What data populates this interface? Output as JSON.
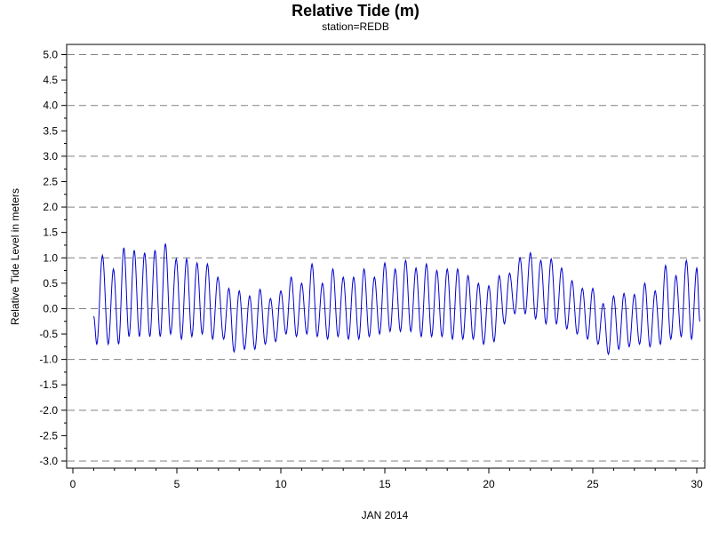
{
  "chart_data": {
    "type": "line",
    "title": "Relative Tide (m)",
    "subtitle": "station=REDB",
    "xlabel": "JAN 2014",
    "ylabel": "Relative Tide Level in meters",
    "xlim": [
      0,
      30
    ],
    "ylim": [
      -3.0,
      5.0
    ],
    "x_ticks": [
      0,
      5,
      10,
      15,
      20,
      25,
      30
    ],
    "x_tick_labels": [
      "0",
      "5",
      "10",
      "15",
      "20",
      "25",
      "30"
    ],
    "y_ticks": [
      5.0,
      4.5,
      4.0,
      3.5,
      3.0,
      2.5,
      2.0,
      1.5,
      1.0,
      0.5,
      0.0,
      -0.5,
      -1.0,
      -1.5,
      -2.0,
      -2.5,
      -3.0
    ],
    "y_tick_labels": [
      "5.0",
      "4.5",
      "4.0",
      "3.5",
      "3.0",
      "2.5",
      "2.0",
      "1.5",
      "1.0",
      "0.5",
      "0.0",
      "-0.5",
      "-1.0",
      "-1.5",
      "-2.0",
      "-2.5",
      "-3.0"
    ],
    "gridlines_y": [
      5.0,
      4.0,
      3.0,
      2.0,
      1.0,
      0.0,
      -1.0,
      -2.0,
      -3.0
    ],
    "grid_style": "dashed, horizontal only",
    "colors": {
      "series": "#0000cc",
      "grid": "#808080",
      "axis": "#000000"
    },
    "series": [
      {
        "points": [
          [
            1.0,
            -0.15
          ],
          [
            1.15,
            -0.7
          ],
          [
            1.42,
            1.05
          ],
          [
            1.7,
            -0.7
          ],
          [
            1.95,
            0.78
          ],
          [
            2.2,
            -0.7
          ],
          [
            2.45,
            1.2
          ],
          [
            2.7,
            -0.55
          ],
          [
            2.95,
            1.15
          ],
          [
            3.2,
            -0.55
          ],
          [
            3.45,
            1.1
          ],
          [
            3.7,
            -0.55
          ],
          [
            3.95,
            1.15
          ],
          [
            4.2,
            -0.55
          ],
          [
            4.45,
            1.28
          ],
          [
            4.7,
            -0.5
          ],
          [
            4.97,
            0.98
          ],
          [
            5.22,
            -0.6
          ],
          [
            5.47,
            0.98
          ],
          [
            5.72,
            -0.55
          ],
          [
            5.97,
            0.9
          ],
          [
            6.22,
            -0.5
          ],
          [
            6.47,
            0.88
          ],
          [
            6.72,
            -0.6
          ],
          [
            6.97,
            0.62
          ],
          [
            7.25,
            -0.6
          ],
          [
            7.5,
            0.4
          ],
          [
            7.75,
            -0.85
          ],
          [
            8.0,
            0.35
          ],
          [
            8.25,
            -0.8
          ],
          [
            8.5,
            0.25
          ],
          [
            8.75,
            -0.8
          ],
          [
            9.0,
            0.38
          ],
          [
            9.25,
            -0.7
          ],
          [
            9.5,
            0.2
          ],
          [
            9.75,
            -0.65
          ],
          [
            10.0,
            0.35
          ],
          [
            10.25,
            -0.5
          ],
          [
            10.5,
            0.62
          ],
          [
            10.75,
            -0.55
          ],
          [
            11.0,
            0.5
          ],
          [
            11.25,
            -0.5
          ],
          [
            11.5,
            0.88
          ],
          [
            11.75,
            -0.55
          ],
          [
            12.0,
            0.5
          ],
          [
            12.25,
            -0.6
          ],
          [
            12.5,
            0.78
          ],
          [
            12.75,
            -0.55
          ],
          [
            13.0,
            0.62
          ],
          [
            13.25,
            -0.6
          ],
          [
            13.5,
            0.62
          ],
          [
            13.75,
            -0.6
          ],
          [
            14.0,
            0.78
          ],
          [
            14.25,
            -0.55
          ],
          [
            14.5,
            0.62
          ],
          [
            14.75,
            -0.5
          ],
          [
            15.0,
            0.9
          ],
          [
            15.25,
            -0.45
          ],
          [
            15.5,
            0.78
          ],
          [
            15.75,
            -0.45
          ],
          [
            16.0,
            0.95
          ],
          [
            16.25,
            -0.45
          ],
          [
            16.5,
            0.8
          ],
          [
            16.75,
            -0.55
          ],
          [
            17.0,
            0.88
          ],
          [
            17.25,
            -0.55
          ],
          [
            17.5,
            0.75
          ],
          [
            17.75,
            -0.55
          ],
          [
            18.0,
            0.78
          ],
          [
            18.25,
            -0.6
          ],
          [
            18.5,
            0.78
          ],
          [
            18.75,
            -0.6
          ],
          [
            19.0,
            0.65
          ],
          [
            19.25,
            -0.6
          ],
          [
            19.5,
            0.5
          ],
          [
            19.75,
            -0.7
          ],
          [
            20.0,
            0.45
          ],
          [
            20.25,
            -0.65
          ],
          [
            20.5,
            0.65
          ],
          [
            20.75,
            -0.3
          ],
          [
            21.0,
            0.7
          ],
          [
            21.25,
            -0.1
          ],
          [
            21.5,
            1.0
          ],
          [
            21.75,
            -0.1
          ],
          [
            22.0,
            1.1
          ],
          [
            22.25,
            -0.2
          ],
          [
            22.5,
            0.95
          ],
          [
            22.75,
            -0.3
          ],
          [
            23.0,
            0.98
          ],
          [
            23.25,
            -0.3
          ],
          [
            23.5,
            0.8
          ],
          [
            23.75,
            -0.4
          ],
          [
            24.0,
            0.55
          ],
          [
            24.25,
            -0.5
          ],
          [
            24.5,
            0.4
          ],
          [
            24.75,
            -0.6
          ],
          [
            25.0,
            0.4
          ],
          [
            25.25,
            -0.7
          ],
          [
            25.5,
            0.1
          ],
          [
            25.75,
            -0.9
          ],
          [
            26.0,
            0.25
          ],
          [
            26.25,
            -0.8
          ],
          [
            26.5,
            0.3
          ],
          [
            26.75,
            -0.75
          ],
          [
            27.0,
            0.28
          ],
          [
            27.25,
            -0.7
          ],
          [
            27.5,
            0.5
          ],
          [
            27.75,
            -0.75
          ],
          [
            28.0,
            0.35
          ],
          [
            28.25,
            -0.7
          ],
          [
            28.5,
            0.85
          ],
          [
            28.75,
            -0.6
          ],
          [
            29.0,
            0.65
          ],
          [
            29.25,
            -0.55
          ],
          [
            29.5,
            0.95
          ],
          [
            29.75,
            -0.6
          ],
          [
            30.0,
            0.8
          ],
          [
            30.15,
            -0.25
          ]
        ]
      }
    ]
  }
}
